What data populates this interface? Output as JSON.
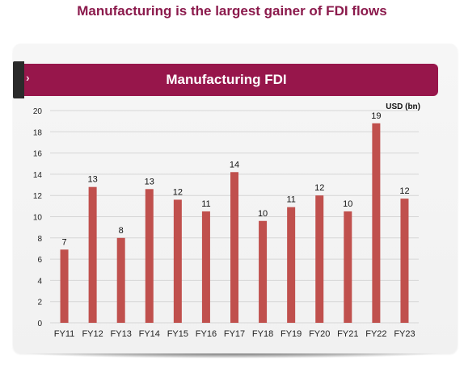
{
  "page": {
    "title": "Manufacturing is the largest gainer of FDI flows"
  },
  "panel": {
    "title": "Manufacturing FDI",
    "arrow_icon": "chevron-right-icon"
  },
  "colors": {
    "bar": "#c0504d",
    "banner": "#97164b",
    "title": "#8b1a4c"
  },
  "chart_data": {
    "type": "bar",
    "title": "Manufacturing FDI",
    "ylabel": "USD (bn)",
    "xlabel": "",
    "categories": [
      "FY11",
      "FY12",
      "FY13",
      "FY14",
      "FY15",
      "FY16",
      "FY17",
      "FY18",
      "FY19",
      "FY20",
      "FY21",
      "FY22",
      "FY23"
    ],
    "values": [
      6.9,
      12.8,
      8.0,
      12.6,
      11.6,
      10.5,
      14.2,
      9.6,
      10.9,
      12.0,
      10.5,
      18.8,
      11.7
    ],
    "data_labels": [
      "7",
      "13",
      "8",
      "13",
      "12",
      "11",
      "14",
      "10",
      "11",
      "12",
      "10",
      "19",
      "12"
    ],
    "ylim": [
      0,
      20
    ],
    "yticks": [
      "0",
      "2",
      "4",
      "6",
      "8",
      "10",
      "12",
      "14",
      "16",
      "18",
      "20"
    ],
    "grid": true,
    "legend": "none"
  }
}
